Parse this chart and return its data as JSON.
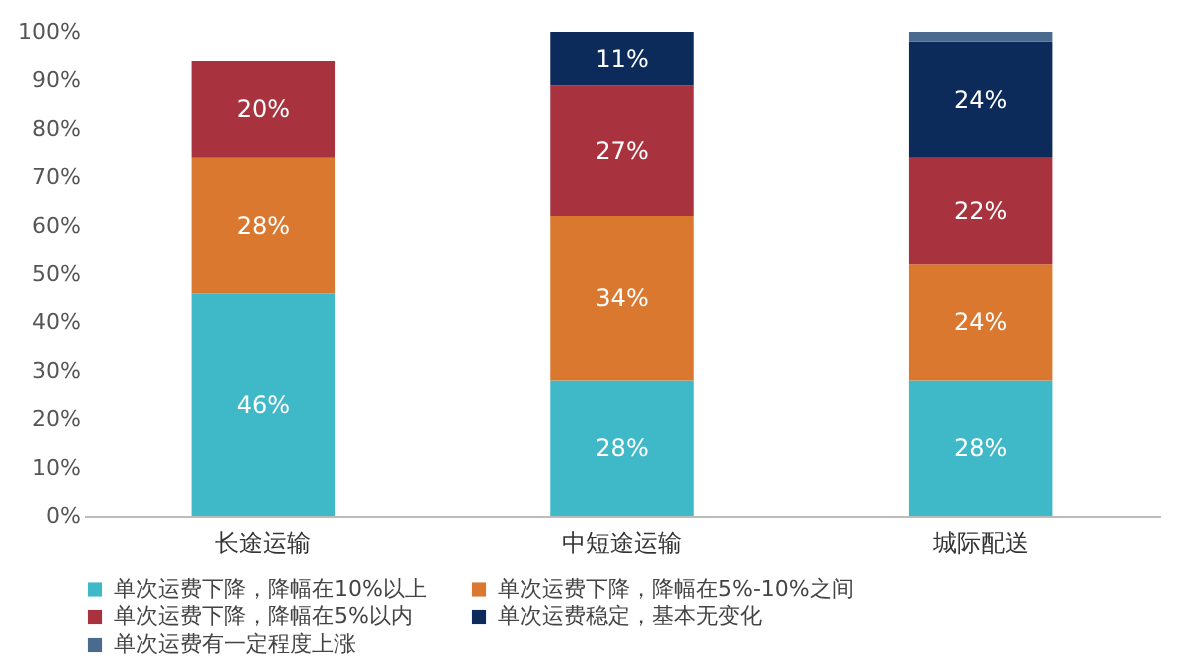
{
  "chart_data": {
    "type": "bar",
    "stacked": true,
    "categories": [
      "长途运输",
      "中短途运输",
      "城际配送"
    ],
    "series": [
      {
        "name": "单次运费下降，降幅在10%以上",
        "color": "#3fb8c8",
        "values": [
          46,
          28,
          28
        ],
        "value_labels": [
          "46%",
          "28%",
          "28%"
        ]
      },
      {
        "name": "单次运费下降，降幅在5%-10%之间",
        "color": "#d9782e",
        "values": [
          28,
          34,
          24
        ],
        "value_labels": [
          "28%",
          "34%",
          "24%"
        ]
      },
      {
        "name": "单次运费下降，降幅在5%以内",
        "color": "#a9323f",
        "values": [
          20,
          27,
          22
        ],
        "value_labels": [
          "20%",
          "27%",
          "22%"
        ]
      },
      {
        "name": "单次运费稳定，基本无变化",
        "color": "#0c2a5a",
        "values": [
          null,
          11,
          24
        ],
        "value_labels": [
          null,
          "11%",
          "24%"
        ]
      },
      {
        "name": "单次运费有一定程度上涨",
        "color": "#4a6a8e",
        "values": [
          null,
          0,
          2
        ],
        "value_labels": [
          null,
          null,
          null
        ]
      }
    ],
    "ylim": [
      0,
      100
    ],
    "yticks": [
      {
        "value": 0,
        "label": "0%"
      },
      {
        "value": 10,
        "label": "10%"
      },
      {
        "value": 20,
        "label": "20%"
      },
      {
        "value": 30,
        "label": "30%"
      },
      {
        "value": 40,
        "label": "40%"
      },
      {
        "value": 50,
        "label": "50%"
      },
      {
        "value": 60,
        "label": "60%"
      },
      {
        "value": 70,
        "label": "70%"
      },
      {
        "value": 80,
        "label": "80%"
      },
      {
        "value": 90,
        "label": "90%"
      },
      {
        "value": 100,
        "label": "100%"
      }
    ],
    "grid": false,
    "legend": "bottom"
  }
}
